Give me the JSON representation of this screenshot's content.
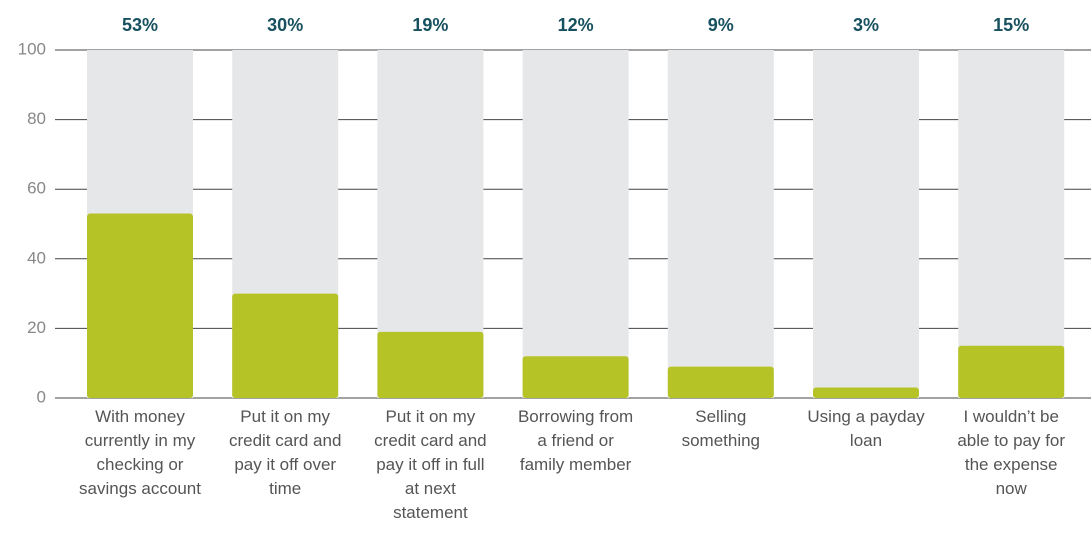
{
  "chart_data": {
    "type": "bar",
    "categories": [
      "With money currently in my checking or savings account",
      "Put it on my credit card and pay it off over time",
      "Put it on my credit card and pay it off in full at next statement",
      "Borrowing from a friend or family member",
      "Selling something",
      "Using a payday loan",
      "I wouldn’t be able to pay for the expense now"
    ],
    "values": [
      53,
      30,
      19,
      12,
      9,
      3,
      15
    ],
    "value_labels": [
      "53%",
      "30%",
      "19%",
      "12%",
      "9%",
      "3%",
      "15%"
    ],
    "color": "#b5c327",
    "ylim": [
      0,
      100
    ],
    "yticks": [
      0,
      20,
      40,
      60,
      80,
      100
    ],
    "grid": true
  }
}
